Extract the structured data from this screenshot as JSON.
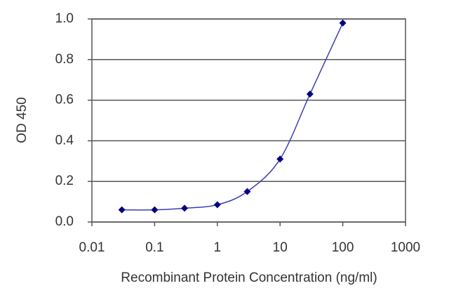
{
  "chart_data": {
    "type": "line",
    "x_label": "Recombinant Protein Concentration (ng/ml)",
    "y_label": "OD 450",
    "x": [
      0.03,
      0.1,
      0.3,
      1,
      3,
      10,
      30,
      100
    ],
    "series": [
      {
        "name": "OD 450",
        "color": "#000080",
        "line_color": "#3c3cb4",
        "values": [
          0.06,
          0.06,
          0.068,
          0.085,
          0.15,
          0.31,
          0.63,
          0.98
        ]
      }
    ],
    "xscale": "log",
    "xlim": [
      0.01,
      1000
    ],
    "xticks": [
      0.01,
      0.1,
      1,
      10,
      100,
      1000
    ],
    "ylim": [
      0,
      1.0
    ],
    "yticks": [
      {
        "value": 0,
        "label": "0.0"
      },
      0.2,
      0.4,
      0.6,
      0.8,
      {
        "value": 1.0,
        "label": "1.0"
      }
    ],
    "grid": true
  }
}
